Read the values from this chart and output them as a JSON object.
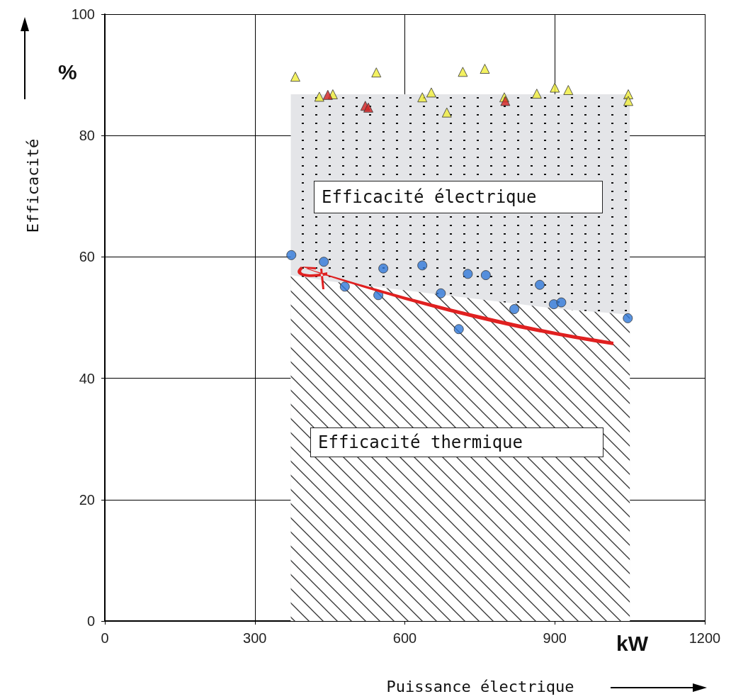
{
  "chart_data": {
    "type": "scatter",
    "xlabel": "Puissance électrique",
    "ylabel": "Efficacité",
    "annotations": [
      "%",
      "kW"
    ],
    "xlim": [
      0,
      1200
    ],
    "xticks": [
      0,
      300,
      600,
      900,
      1200
    ],
    "ylim": [
      0,
      100
    ],
    "yticks": [
      0,
      20,
      40,
      60,
      80,
      100
    ],
    "grid": true,
    "stacked": true,
    "series": [
      {
        "name": "Efficacité thermique",
        "type": "area",
        "marker": "none",
        "color": "#333333",
        "x": [
          372,
          450,
          600,
          750,
          900,
          1050
        ],
        "values": [
          57,
          56,
          54.5,
          53,
          51.5,
          50.5
        ]
      },
      {
        "name": "Efficacité électrique",
        "type": "area",
        "marker": "none",
        "color": "#e4e5e8",
        "x": [
          372,
          450,
          600,
          750,
          900,
          1050
        ],
        "values": [
          29.8,
          30.8,
          32.3,
          33.8,
          35.3,
          36.3
        ]
      },
      {
        "type": "scatter",
        "marker": "triangle",
        "color": "#f0ee3a",
        "x": [
          381,
          429,
          456,
          543,
          635,
          653,
          684,
          716,
          760,
          799,
          864,
          900,
          927,
          1047,
          1047
        ],
        "values": [
          89.7,
          86.4,
          86.8,
          90.4,
          86.3,
          87.1,
          83.8,
          90.5,
          91.0,
          86.3,
          86.9,
          87.9,
          87.5,
          86.8,
          85.7
        ]
      },
      {
        "type": "scatter",
        "marker": "triangle",
        "color": "#d42020",
        "x": [
          446,
          521,
          527,
          801
        ],
        "values": [
          86.7,
          84.9,
          84.6,
          85.7
        ]
      },
      {
        "type": "scatter",
        "marker": "circle",
        "color": "#2f78d8",
        "x": [
          373,
          438,
          557,
          480,
          547,
          635,
          672,
          726,
          762,
          708,
          819,
          870,
          898,
          913,
          1046
        ],
        "values": [
          60.3,
          59.2,
          58.1,
          55.1,
          53.7,
          58.6,
          54.0,
          57.2,
          57.0,
          48.1,
          51.4,
          55.4,
          52.2,
          52.5,
          49.9
        ]
      }
    ]
  }
}
